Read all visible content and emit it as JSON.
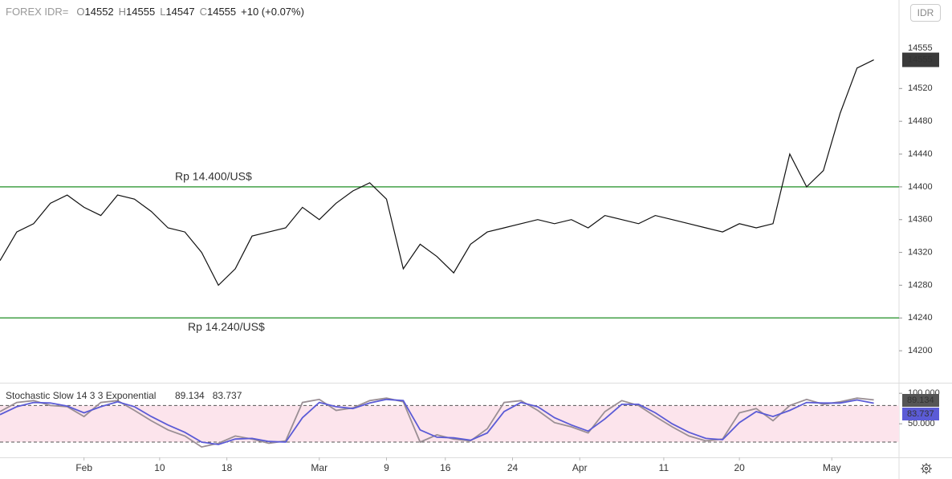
{
  "header": {
    "symbol": "FOREX IDR=",
    "ohlc_labels": [
      "O",
      "H",
      "L",
      "C"
    ],
    "open": 14552,
    "high": 14555,
    "low": 14547,
    "close": 14555,
    "change": "+10 (+0.07%)",
    "currency": "IDR"
  },
  "chart_data": [
    {
      "type": "line",
      "color": "#111111",
      "x": [
        22,
        24,
        26,
        28,
        30,
        32,
        34,
        36,
        38,
        40,
        42,
        44,
        46,
        48,
        50,
        52,
        54,
        56,
        58,
        60,
        62,
        64,
        66,
        68,
        70,
        72,
        74,
        76,
        78,
        80,
        82,
        84,
        86,
        88,
        90,
        92,
        94,
        96,
        98,
        100,
        102,
        104,
        106,
        108,
        110,
        112,
        114,
        116,
        118,
        120,
        122,
        124,
        126
      ],
      "values": [
        14310,
        14345,
        14355,
        14380,
        14390,
        14375,
        14365,
        14390,
        14385,
        14370,
        14350,
        14345,
        14320,
        14280,
        14300,
        14340,
        14345,
        14350,
        14375,
        14360,
        14380,
        14395,
        14405,
        14385,
        14300,
        14330,
        14315,
        14295,
        14330,
        14345,
        14350,
        14355,
        14360,
        14355,
        14360,
        14350,
        14365,
        14360,
        14355,
        14365,
        14360,
        14355,
        14350,
        14345,
        14355,
        14350,
        14355,
        14440,
        14400,
        14420,
        14490,
        14545,
        14555
      ],
      "xlim": [
        22,
        129
      ],
      "ylim": [
        14161,
        14628
      ],
      "yticks": [
        14200,
        14240,
        14280,
        14320,
        14360,
        14400,
        14440,
        14480,
        14520
      ],
      "levels": [
        {
          "value": 14400,
          "label": "Rp 14.400/US$",
          "color": "#43a047"
        },
        {
          "value": 14240,
          "label": "Rp 14.240/US$",
          "color": "#43a047"
        }
      ],
      "price_label": 14555,
      "last_price": 14555
    },
    {
      "type": "line",
      "title": "Stochastic Slow 14 3 3 Exponential",
      "x": [
        22,
        24,
        26,
        28,
        30,
        32,
        34,
        36,
        38,
        40,
        42,
        44,
        46,
        48,
        50,
        52,
        54,
        56,
        58,
        60,
        62,
        64,
        66,
        68,
        70,
        72,
        74,
        76,
        78,
        80,
        82,
        84,
        86,
        88,
        90,
        92,
        94,
        96,
        98,
        100,
        102,
        104,
        106,
        108,
        110,
        112,
        114,
        116,
        118,
        120,
        122,
        124,
        126
      ],
      "series": [
        {
          "color": "#9a8f94",
          "values": [
            70,
            85,
            88,
            80,
            78,
            62,
            85,
            88,
            72,
            55,
            40,
            30,
            12,
            18,
            30,
            25,
            18,
            22,
            85,
            90,
            72,
            76,
            88,
            92,
            86,
            20,
            32,
            25,
            22,
            42,
            85,
            88,
            72,
            52,
            45,
            35,
            70,
            88,
            80,
            62,
            45,
            30,
            22,
            25,
            68,
            75,
            55,
            80,
            90,
            82,
            86,
            92,
            89.134
          ]
        },
        {
          "color": "#5b5bd6",
          "values": [
            65,
            78,
            85,
            84,
            79,
            68,
            78,
            86,
            78,
            62,
            48,
            36,
            20,
            16,
            25,
            26,
            21,
            20,
            60,
            85,
            78,
            75,
            84,
            90,
            88,
            40,
            28,
            27,
            23,
            35,
            70,
            85,
            78,
            60,
            48,
            38,
            58,
            82,
            82,
            68,
            50,
            36,
            26,
            24,
            52,
            70,
            62,
            72,
            85,
            84,
            84,
            89,
            83.737
          ]
        }
      ],
      "xlim": [
        22,
        129
      ],
      "ylim": [
        -5,
        116
      ],
      "yticks": [
        {
          "value": 50,
          "label": "50.000"
        },
        {
          "value": 100,
          "label": "100.000"
        }
      ],
      "band": [
        20,
        80
      ],
      "band_color": "#fce4ec",
      "xticks": [
        {
          "value": 32,
          "label": "Feb"
        },
        {
          "value": 41,
          "label": "10"
        },
        {
          "value": 49,
          "label": "18"
        },
        {
          "value": 60,
          "label": "Mar"
        },
        {
          "value": 68,
          "label": "9"
        },
        {
          "value": 75,
          "label": "16"
        },
        {
          "value": 83,
          "label": "24"
        },
        {
          "value": 91,
          "label": "Apr"
        },
        {
          "value": 101,
          "label": "11"
        },
        {
          "value": 110,
          "label": "20"
        },
        {
          "value": 121,
          "label": "May"
        }
      ]
    }
  ]
}
